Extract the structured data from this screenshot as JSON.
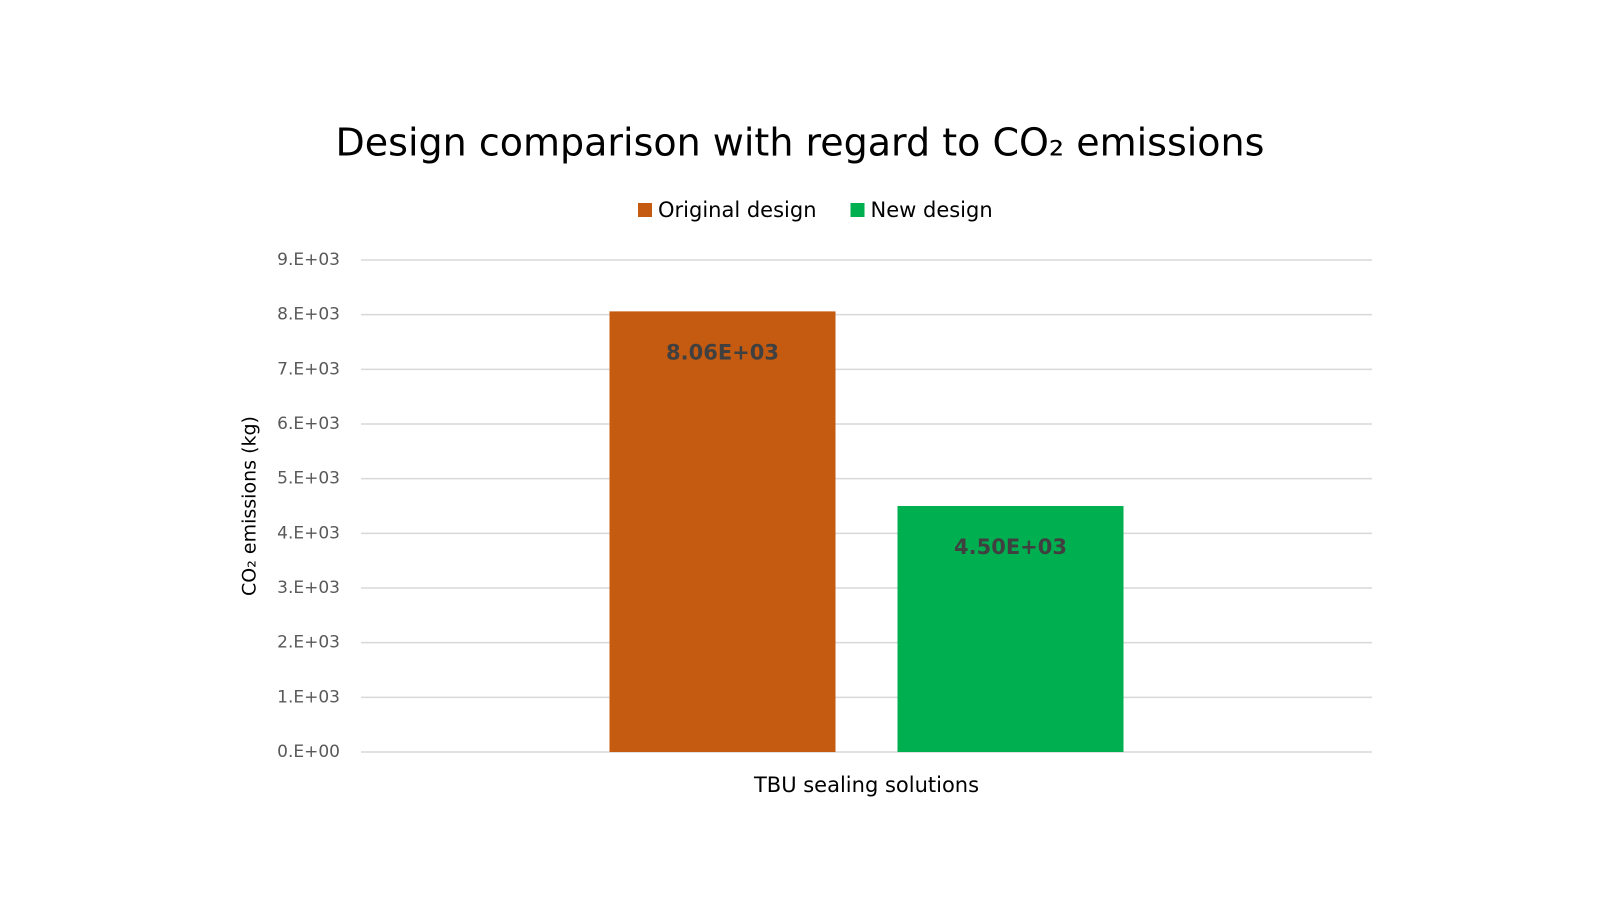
{
  "chart_data": {
    "type": "bar",
    "title": "Design comparison with regard to CO₂ emissions",
    "y_label": "CO₂ emissions (kg)",
    "categories": [
      "TBU sealing solutions"
    ],
    "series": [
      {
        "name": "Original design",
        "color": "#c55a11",
        "values": [
          8060
        ],
        "value_labels": [
          "8.06E+03"
        ]
      },
      {
        "name": "New design",
        "color": "#00b050",
        "values": [
          4500
        ],
        "value_labels": [
          "4.50E+03"
        ]
      }
    ],
    "ylim": [
      0,
      9000
    ],
    "yticks": [
      {
        "value": 0,
        "label": "0.E+00"
      },
      {
        "value": 1000,
        "label": "1.E+03"
      },
      {
        "value": 2000,
        "label": "2.E+03"
      },
      {
        "value": 3000,
        "label": "3.E+03"
      },
      {
        "value": 4000,
        "label": "4.E+03"
      },
      {
        "value": 5000,
        "label": "5.E+03"
      },
      {
        "value": 6000,
        "label": "6.E+03"
      },
      {
        "value": 7000,
        "label": "7.E+03"
      },
      {
        "value": 8000,
        "label": "8.E+03"
      },
      {
        "value": 9000,
        "label": "9.E+03"
      }
    ],
    "grid": true,
    "legend": "top"
  }
}
